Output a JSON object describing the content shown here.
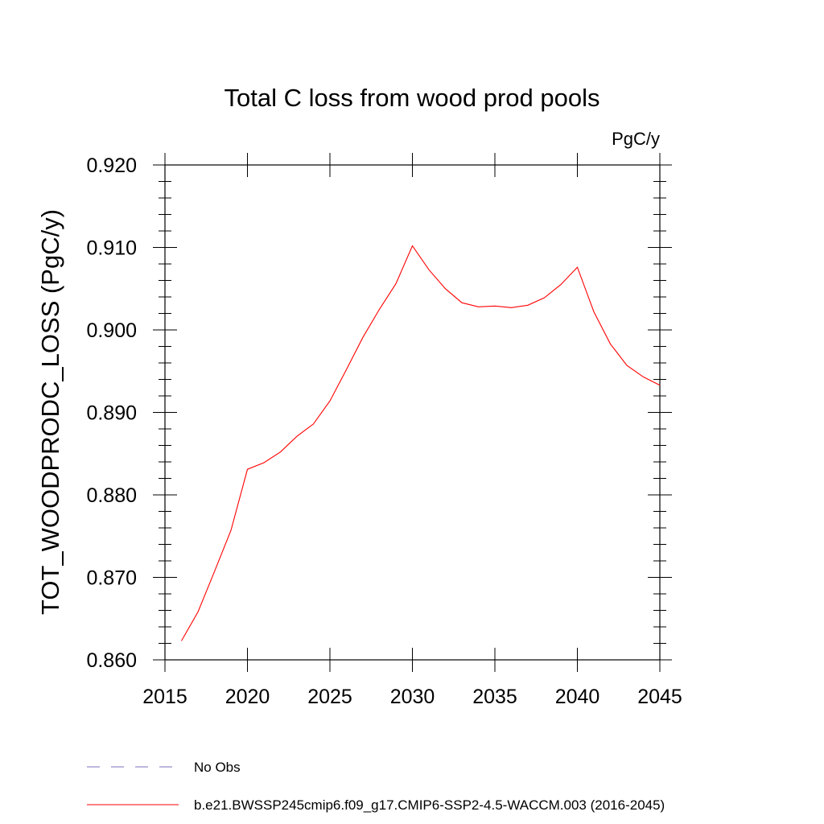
{
  "chart_data": {
    "type": "line",
    "title": "Total C loss from wood prod pools",
    "units": "PgC/y",
    "xlabel": "",
    "ylabel": "TOT_WOODPRODC_LOSS  (PgC/y)",
    "xlim": [
      2015,
      2045
    ],
    "ylim": [
      0.86,
      0.92
    ],
    "xticks": [
      2015,
      2020,
      2025,
      2030,
      2035,
      2040,
      2045
    ],
    "xtick_labels": [
      "2015",
      "2020",
      "2025",
      "2030",
      "2035",
      "2040",
      "2045"
    ],
    "yticks": [
      0.86,
      0.87,
      0.88,
      0.89,
      0.9,
      0.91,
      0.92
    ],
    "ytick_labels": [
      "0.860",
      "0.870",
      "0.880",
      "0.890",
      "0.900",
      "0.910",
      "0.920"
    ],
    "grid": false,
    "legend_position": "bottom",
    "legend": [
      {
        "name": "No Obs",
        "style": "dashed",
        "color": "#7a6fb8"
      },
      {
        "name": "b.e21.BWSSP245cmip6.f09_g17.CMIP6-SSP2-4.5-WACCM.003 (2016-2045)",
        "style": "solid",
        "color": "#ff0000"
      }
    ],
    "series": [
      {
        "name": "b.e21.BWSSP245cmip6.f09_g17.CMIP6-SSP2-4.5-WACCM.003 (2016-2045)",
        "color": "#ff0000",
        "x": [
          2016,
          2017,
          2018,
          2019,
          2020,
          2021,
          2022,
          2023,
          2024,
          2025,
          2026,
          2027,
          2028,
          2029,
          2030,
          2031,
          2032,
          2033,
          2034,
          2035,
          2036,
          2037,
          2038,
          2039,
          2040,
          2041,
          2042,
          2043,
          2044,
          2045
        ],
        "y": [
          0.8623,
          0.8658,
          0.8707,
          0.8757,
          0.8831,
          0.8839,
          0.8852,
          0.8871,
          0.8886,
          0.8914,
          0.8952,
          0.8991,
          0.9025,
          0.9056,
          0.9102,
          0.9073,
          0.905,
          0.9033,
          0.9028,
          0.9029,
          0.9027,
          0.903,
          0.9039,
          0.9055,
          0.9076,
          0.9022,
          0.8983,
          0.8957,
          0.8943,
          0.8933
        ]
      }
    ]
  }
}
